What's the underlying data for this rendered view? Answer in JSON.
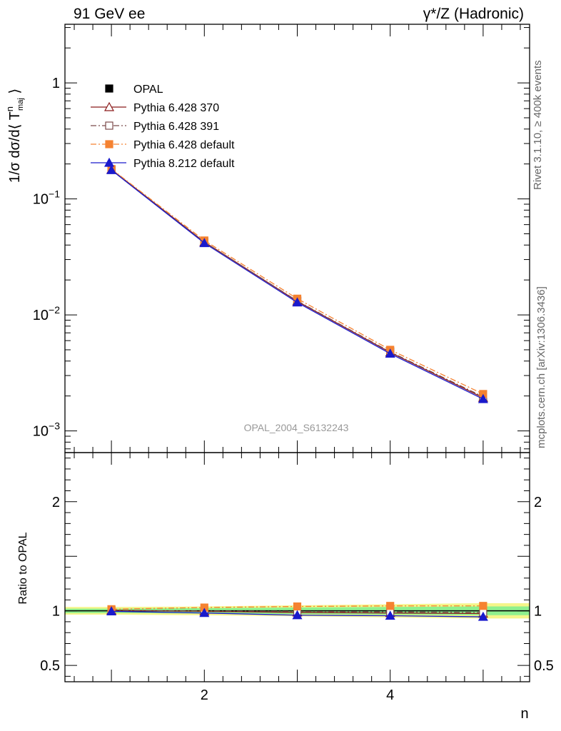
{
  "header": {
    "left": "91 GeV ee",
    "right": "γ*/Z (Hadronic)"
  },
  "side_text": {
    "rivet": "Rivet 3.1.10, ≥ 400k events",
    "source": "mcplots.cern.ch [arXiv:1306.3436]"
  },
  "analysis_label": "OPAL_2004_S6132243",
  "colors": {
    "opal": "#000000",
    "py370": "#8b1a1a",
    "py391": "#7b4a4a",
    "py_default": "#f58231",
    "py8": "#1a1acc",
    "band_green": "#8ef08e",
    "band_yellow": "#f5f58a"
  },
  "chart_data": [
    {
      "type": "line",
      "title": "",
      "ylabel": "1/σ dσ/d⟨ T^n_maj ⟩",
      "yscale": "log",
      "ylim": [
        0.00065,
        3.2
      ],
      "xlim": [
        0.5,
        5.5
      ],
      "y_ticks": [
        {
          "value": 1,
          "label": "1"
        },
        {
          "value": 0.1,
          "label": "10^-1"
        },
        {
          "value": 0.01,
          "label": "10^-2"
        },
        {
          "value": 0.001,
          "label": "10^-3"
        }
      ],
      "x": [
        1,
        2,
        3,
        4,
        5
      ],
      "series": [
        {
          "name": "OPAL",
          "color_key": "opal",
          "marker": "square",
          "line": "none",
          "values": [
            0.178,
            0.0425,
            0.0133,
            0.00485,
            0.002
          ]
        },
        {
          "name": "Pythia 6.428 370",
          "color_key": "py370",
          "marker": "triangle-open",
          "line": "solid",
          "values": [
            0.179,
            0.0425,
            0.0131,
            0.00475,
            0.00193
          ]
        },
        {
          "name": "Pythia 6.428 391",
          "color_key": "py391",
          "marker": "square-open",
          "line": "dashdot",
          "values": [
            0.179,
            0.0424,
            0.0132,
            0.0048,
            0.00197
          ]
        },
        {
          "name": "Pythia 6.428 default",
          "color_key": "py_default",
          "marker": "square",
          "line": "dashdot",
          "values": [
            0.181,
            0.0438,
            0.0138,
            0.005,
            0.00208
          ]
        },
        {
          "name": "Pythia 8.212 default",
          "color_key": "py8",
          "marker": "triangle",
          "line": "solid",
          "values": [
            0.177,
            0.0416,
            0.0128,
            0.00463,
            0.00188
          ]
        }
      ]
    },
    {
      "type": "line",
      "ylabel": "Ratio to OPAL",
      "xlabel": "n",
      "ylim": [
        0.35,
        2.45
      ],
      "xlim": [
        0.5,
        5.5
      ],
      "y_ticks": [
        {
          "value": 2,
          "label": "2"
        },
        {
          "value": 1,
          "label": "1"
        },
        {
          "value": 0.5,
          "label": "0.5"
        }
      ],
      "x_ticks": [
        {
          "value": 2,
          "label": "2"
        },
        {
          "value": 4,
          "label": "4"
        }
      ],
      "x": [
        1,
        2,
        3,
        4,
        5
      ],
      "band": {
        "x": [
          0.5,
          1,
          2,
          3,
          4,
          5,
          5.5
        ],
        "green_half": [
          0.02,
          0.02,
          0.025,
          0.03,
          0.035,
          0.04,
          0.04
        ],
        "yellow_half": [
          0.035,
          0.035,
          0.04,
          0.05,
          0.06,
          0.07,
          0.07
        ]
      },
      "series": [
        {
          "name": "Pythia 6.428 370",
          "color_key": "py370",
          "marker": "triangle-open",
          "line": "solid",
          "values": [
            1.005,
            0.995,
            0.985,
            0.98,
            0.975
          ]
        },
        {
          "name": "Pythia 6.428 391",
          "color_key": "py391",
          "marker": "square-open",
          "line": "dashdot",
          "values": [
            1.005,
            0.998,
            0.995,
            0.99,
            0.985
          ]
        },
        {
          "name": "Pythia 6.428 default",
          "color_key": "py_default",
          "marker": "square",
          "line": "dashdot",
          "values": [
            1.015,
            1.03,
            1.04,
            1.045,
            1.045
          ]
        },
        {
          "name": "Pythia 8.212 default",
          "color_key": "py8",
          "marker": "triangle",
          "line": "solid",
          "values": [
            0.995,
            0.98,
            0.96,
            0.955,
            0.945
          ]
        }
      ]
    }
  ]
}
